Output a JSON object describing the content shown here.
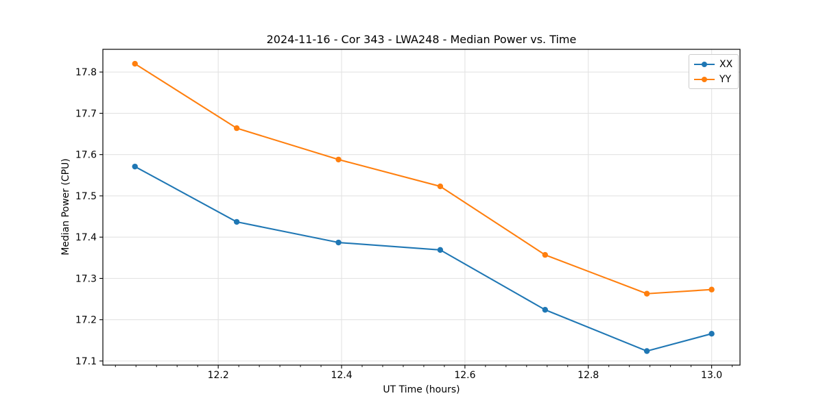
{
  "chart_data": {
    "type": "line",
    "title": "2024-11-16 - Cor 343 - LWA248 - Median Power vs. Time",
    "xlabel": "UT Time (hours)",
    "ylabel": "Median Power (CPU)",
    "x": [
      12.065,
      12.23,
      12.395,
      12.56,
      12.73,
      12.895,
      13.0
    ],
    "series": [
      {
        "name": "XX",
        "color": "#1f77b4",
        "values": [
          17.571,
          17.437,
          17.387,
          17.369,
          17.224,
          17.124,
          17.166
        ]
      },
      {
        "name": "YY",
        "color": "#ff7f0e",
        "values": [
          17.82,
          17.664,
          17.588,
          17.523,
          17.357,
          17.263,
          17.273
        ]
      }
    ],
    "xlim": [
      12.013,
      13.046
    ],
    "ylim": [
      17.09,
      17.855
    ],
    "xticks": [
      12.2,
      12.4,
      12.6,
      12.8,
      13.0
    ],
    "yticks": [
      17.1,
      17.2,
      17.3,
      17.4,
      17.5,
      17.6,
      17.7,
      17.8
    ],
    "x_minor_step": 0.0333333,
    "x_tick_decimals": 1,
    "y_tick_decimals": 1,
    "grid": true,
    "legend_position": "upper right",
    "marker": "o"
  }
}
